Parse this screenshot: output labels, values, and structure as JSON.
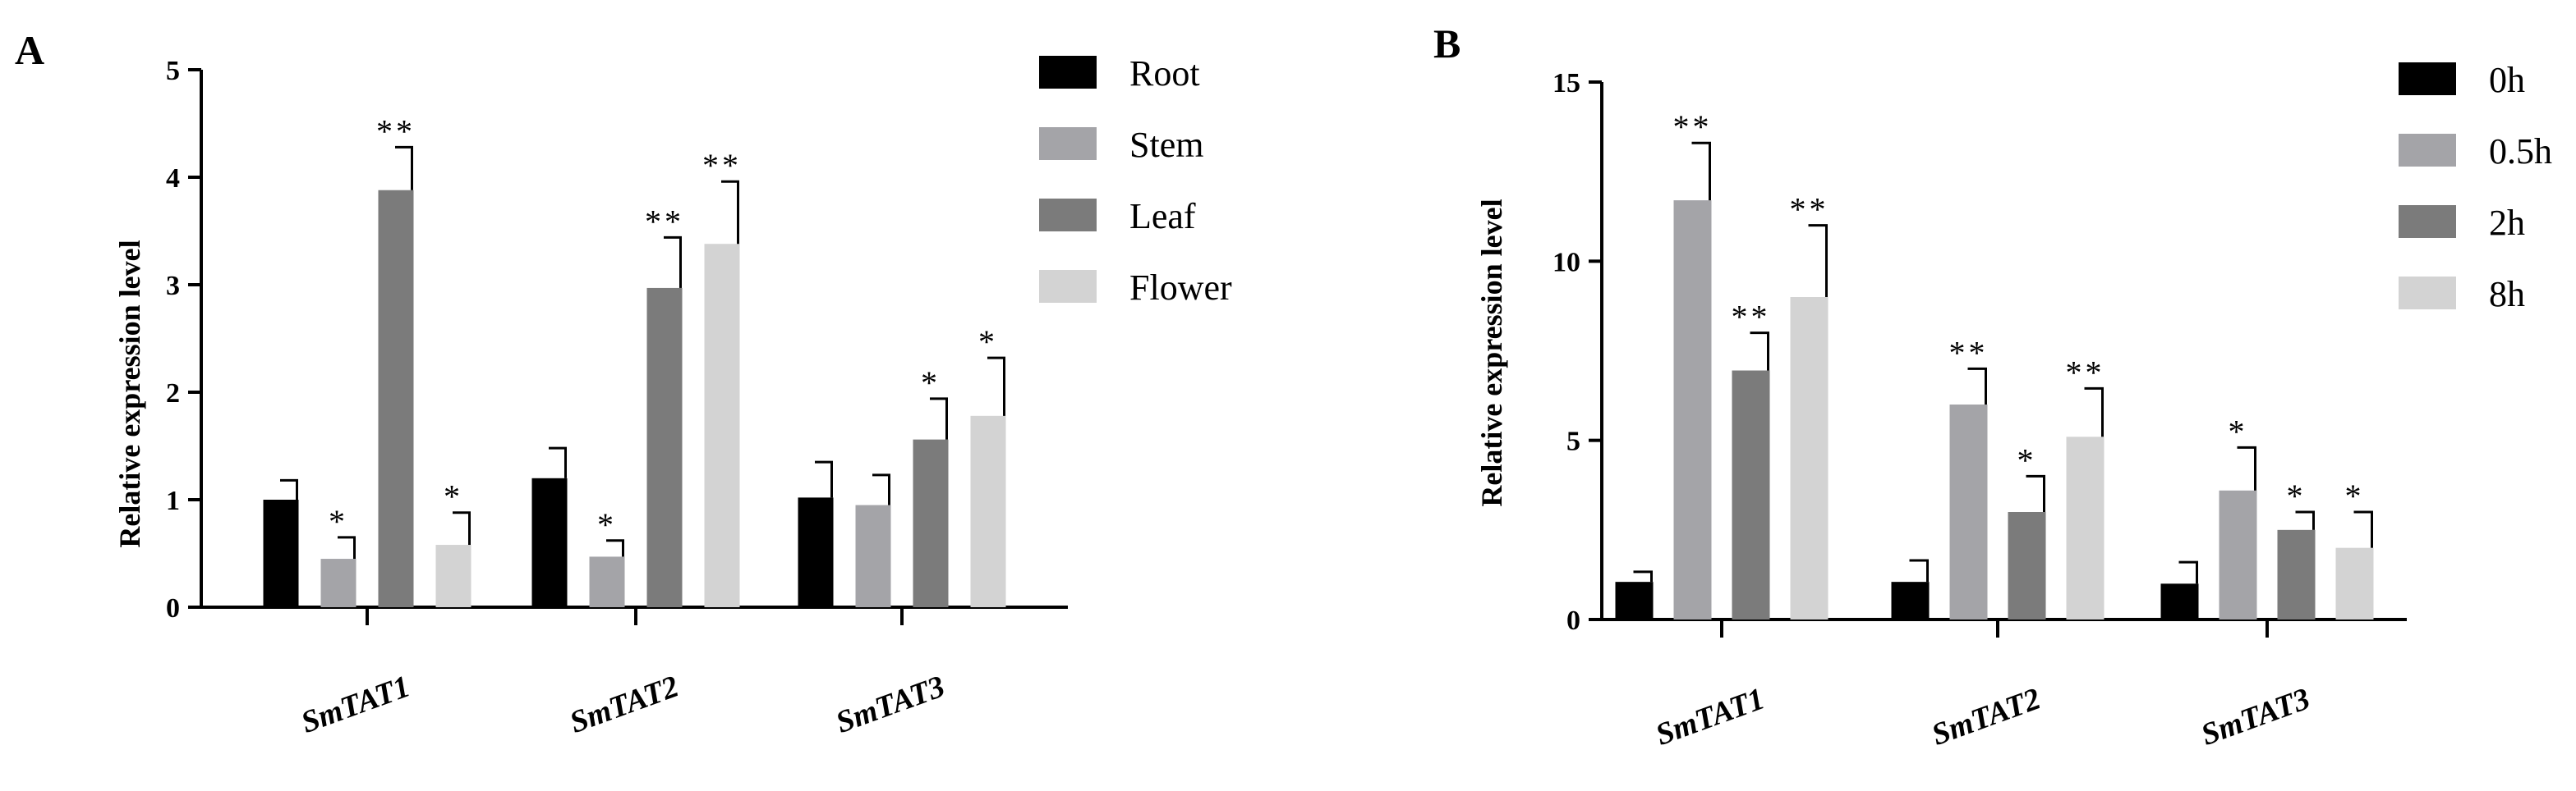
{
  "chart_data": [
    {
      "type": "bar",
      "panel": "A",
      "title": "",
      "xlabel": "",
      "ylabel": "Relative expression level",
      "ylim": [
        0,
        5
      ],
      "yticks": [
        "0",
        "1",
        "2",
        "3",
        "4",
        "5"
      ],
      "categories": [
        "SmTAT1",
        "SmTAT2",
        "SmTAT3"
      ],
      "series": [
        {
          "name": "Root",
          "color": "#000000",
          "values": [
            1.0,
            1.2,
            1.02
          ],
          "errors": [
            0.18,
            0.28,
            0.33
          ],
          "sig": [
            "",
            "",
            ""
          ]
        },
        {
          "name": "Stem",
          "color": "#a4a4a8",
          "values": [
            0.45,
            0.47,
            0.95
          ],
          "errors": [
            0.2,
            0.15,
            0.28
          ],
          "sig": [
            "*",
            "*",
            ""
          ]
        },
        {
          "name": "Leaf",
          "color": "#7b7b7b",
          "values": [
            3.88,
            2.97,
            1.56
          ],
          "errors": [
            0.4,
            0.47,
            0.38
          ],
          "sig": [
            "**",
            "**",
            "*"
          ]
        },
        {
          "name": "Flower",
          "color": "#d3d3d3",
          "values": [
            0.58,
            3.38,
            1.78
          ],
          "errors": [
            0.3,
            0.58,
            0.54
          ],
          "sig": [
            "*",
            "**",
            "*"
          ]
        }
      ],
      "legend_position": "top-right"
    },
    {
      "type": "bar",
      "panel": "B",
      "title": "",
      "xlabel": "",
      "ylabel": "Relative expression level",
      "ylim": [
        0,
        15
      ],
      "yticks": [
        "0",
        "5",
        "10",
        "15"
      ],
      "categories": [
        "SmTAT1",
        "SmTAT2",
        "SmTAT3"
      ],
      "series": [
        {
          "name": "0h",
          "color": "#000000",
          "values": [
            1.05,
            1.05,
            1.0
          ],
          "errors": [
            0.28,
            0.6,
            0.6
          ],
          "sig": [
            "",
            "",
            ""
          ]
        },
        {
          "name": "0.5h",
          "color": "#a4a4a8",
          "values": [
            11.7,
            6.0,
            3.6
          ],
          "errors": [
            1.6,
            1.0,
            1.2
          ],
          "sig": [
            "**",
            "**",
            "*"
          ]
        },
        {
          "name": "2h",
          "color": "#7b7b7b",
          "values": [
            6.95,
            3.0,
            2.5
          ],
          "errors": [
            1.05,
            1.0,
            0.5
          ],
          "sig": [
            "**",
            "*",
            "*"
          ]
        },
        {
          "name": "8h",
          "color": "#d3d3d3",
          "values": [
            9.0,
            5.1,
            2.0
          ],
          "errors": [
            2.0,
            1.35,
            1.0
          ],
          "sig": [
            "**",
            "**",
            "*"
          ]
        }
      ],
      "legend_position": "top-right"
    }
  ]
}
